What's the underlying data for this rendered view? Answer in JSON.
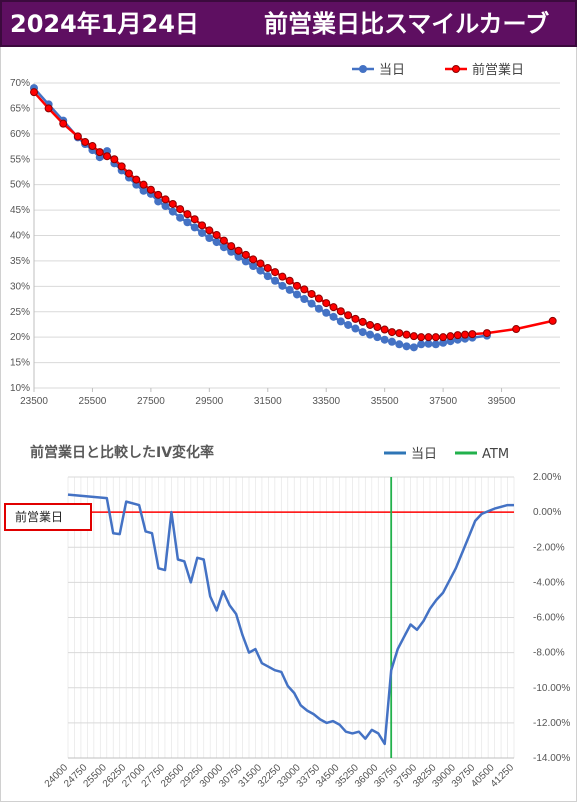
{
  "header": {
    "date": "2024年1月24日",
    "title": "前営業日比スマイルカーブ",
    "background": "#5e0f61"
  },
  "chart_data": [
    {
      "type": "line",
      "title": "",
      "xlabel": "",
      "ylabel": "",
      "xlim": [
        23500,
        41500
      ],
      "ylim": [
        10,
        70
      ],
      "x_ticks": [
        "23500",
        "25500",
        "27500",
        "29500",
        "31500",
        "33500",
        "35500",
        "37500",
        "39500"
      ],
      "y_ticks": [
        "10%",
        "15%",
        "20%",
        "25%",
        "30%",
        "35%",
        "40%",
        "45%",
        "50%",
        "55%",
        "60%",
        "65%",
        "70%"
      ],
      "legend_position": "top-right",
      "series": [
        {
          "name": "当日",
          "color": "#4472c4",
          "x": [
            23500,
            24000,
            24500,
            25000,
            25250,
            25500,
            25750,
            26000,
            26250,
            26500,
            26750,
            27000,
            27250,
            27500,
            27750,
            28000,
            28250,
            28500,
            28750,
            29000,
            29250,
            29500,
            29750,
            30000,
            30250,
            30500,
            30750,
            31000,
            31250,
            31500,
            31750,
            32000,
            32250,
            32500,
            32750,
            33000,
            33250,
            33500,
            33750,
            34000,
            34250,
            34500,
            34750,
            35000,
            35250,
            35500,
            35750,
            36000,
            36250,
            36500,
            36750,
            37000,
            37250,
            37500,
            37750,
            38000,
            38250,
            38500,
            39000
          ],
          "values": [
            69.0,
            65.8,
            62.6,
            59.3,
            58.0,
            56.8,
            55.4,
            56.6,
            54.2,
            52.8,
            51.4,
            50.0,
            48.8,
            48.2,
            46.7,
            45.8,
            44.7,
            43.5,
            42.6,
            41.6,
            40.5,
            39.5,
            38.7,
            37.7,
            36.8,
            35.8,
            34.9,
            34.0,
            33.1,
            32.0,
            31.1,
            30.1,
            29.3,
            28.4,
            27.5,
            26.6,
            25.6,
            24.8,
            24.0,
            23.1,
            22.4,
            21.7,
            21.0,
            20.5,
            20.0,
            19.5,
            19.1,
            18.6,
            18.2,
            18.0,
            18.6,
            18.7,
            18.6,
            18.9,
            19.2,
            19.5,
            19.7,
            19.9,
            20.3
          ]
        },
        {
          "name": "前営業日",
          "color": "#ff0000",
          "x": [
            23500,
            24000,
            24500,
            25000,
            25250,
            25500,
            25750,
            26000,
            26250,
            26500,
            26750,
            27000,
            27250,
            27500,
            27750,
            28000,
            28250,
            28500,
            28750,
            29000,
            29250,
            29500,
            29750,
            30000,
            30250,
            30500,
            30750,
            31000,
            31250,
            31500,
            31750,
            32000,
            32250,
            32500,
            32750,
            33000,
            33250,
            33500,
            33750,
            34000,
            34250,
            34500,
            34750,
            35000,
            35250,
            35500,
            35750,
            36000,
            36250,
            36500,
            36750,
            37000,
            37250,
            37500,
            37750,
            38000,
            38250,
            38500,
            39000,
            40000,
            41250
          ],
          "values": [
            68.2,
            65.0,
            62.0,
            59.5,
            58.4,
            57.6,
            56.4,
            55.6,
            55.0,
            53.6,
            52.2,
            51.0,
            50.0,
            49.0,
            48.0,
            47.1,
            46.2,
            45.2,
            44.2,
            43.2,
            42.0,
            41.0,
            40.1,
            39.0,
            37.9,
            37.0,
            36.2,
            35.3,
            34.5,
            33.6,
            32.8,
            31.9,
            31.1,
            30.1,
            29.4,
            28.5,
            27.6,
            26.7,
            25.9,
            25.1,
            24.3,
            23.6,
            23.0,
            22.4,
            22.0,
            21.5,
            21.0,
            20.8,
            20.5,
            20.2,
            20.0,
            20.0,
            20.0,
            20.0,
            20.2,
            20.4,
            20.5,
            20.6,
            20.8,
            21.6,
            23.2
          ]
        }
      ]
    },
    {
      "type": "line",
      "title": "前営業日と比較したIV変化率",
      "xlabel": "",
      "ylabel": "",
      "xlim": [
        24000,
        41250
      ],
      "ylim": [
        -14,
        2
      ],
      "x_ticks": [
        "24000",
        "24750",
        "25500",
        "26250",
        "27000",
        "27750",
        "28500",
        "29250",
        "30000",
        "30750",
        "31500",
        "32250",
        "33000",
        "33750",
        "34500",
        "35250",
        "36000",
        "36750",
        "37500",
        "38250",
        "39000",
        "39750",
        "40500",
        "41250"
      ],
      "y_ticks": [
        "2.00%",
        "0.00%",
        "-2.00%",
        "-4.00%",
        "-6.00%",
        "-8.00%",
        "-10.00%",
        "-12.00%",
        "-14.00%"
      ],
      "legend_position": "top-right",
      "baseline_label": "前営業日",
      "baseline_value": 0,
      "baseline_color": "#ff0000",
      "atm_value": 36500,
      "series": [
        {
          "name": "当日",
          "color": "#4472c4",
          "x": [
            24000,
            25500,
            25750,
            26000,
            26250,
            26750,
            27000,
            27250,
            27500,
            27750,
            28000,
            28250,
            28500,
            28750,
            29000,
            29250,
            29500,
            29750,
            30000,
            30250,
            30500,
            30750,
            31000,
            31250,
            31500,
            31750,
            32000,
            32250,
            32500,
            32750,
            33000,
            33250,
            33500,
            33750,
            34000,
            34250,
            34500,
            34750,
            35000,
            35250,
            35500,
            35750,
            36000,
            36250,
            36500,
            36750,
            37000,
            37250,
            37500,
            37750,
            38000,
            38250,
            38500,
            38750,
            39000,
            39250,
            39500,
            39750,
            40000,
            40500,
            41000,
            41250
          ],
          "values": [
            1.0,
            0.8,
            -1.2,
            -1.25,
            0.6,
            0.4,
            -1.1,
            -1.2,
            -3.2,
            -3.3,
            0.0,
            -2.7,
            -2.8,
            -4.0,
            -2.6,
            -2.7,
            -4.8,
            -5.6,
            -4.5,
            -5.3,
            -5.8,
            -7.0,
            -8.0,
            -7.8,
            -8.6,
            -8.8,
            -9.0,
            -9.1,
            -9.9,
            -10.3,
            -11.0,
            -11.3,
            -11.5,
            -11.8,
            -12.0,
            -11.9,
            -12.1,
            -12.5,
            -12.6,
            -12.5,
            -12.9,
            -12.4,
            -12.6,
            -13.2,
            -9.0,
            -7.8,
            -7.1,
            -6.4,
            -6.7,
            -6.2,
            -5.5,
            -5.0,
            -4.6,
            -3.9,
            -3.2,
            -2.3,
            -1.4,
            -0.5,
            -0.1,
            0.2,
            0.4,
            0.4
          ]
        },
        {
          "name": "ATM",
          "color": "#22b14c"
        }
      ]
    }
  ]
}
